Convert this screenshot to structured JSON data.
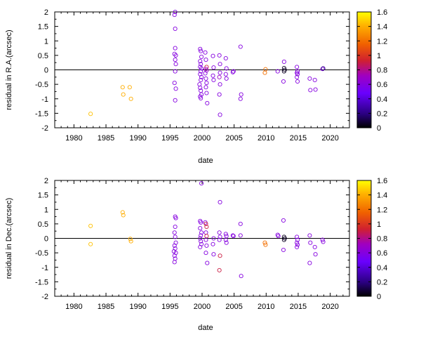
{
  "chart_data": [
    {
      "type": "scatter",
      "xlabel": "date",
      "ylabel": "residual in R.A.(arcsec)",
      "xlim": [
        1977,
        2023
      ],
      "ylim": [
        -2,
        2
      ],
      "xticks": [
        "1980",
        "1985",
        "1990",
        "1995",
        "2000",
        "2005",
        "2010",
        "2015",
        "2020"
      ],
      "yticks": [
        "-2",
        "-1.5",
        "-1",
        "-0.5",
        "0",
        "0.5",
        "1",
        "1.5",
        "2"
      ],
      "zero_line": true,
      "grid": false,
      "marker": "open-circle",
      "colorbar": {
        "range": [
          0,
          1.6
        ],
        "ticks": [
          "0",
          "0.2",
          "0.4",
          "0.6",
          "0.8",
          "1",
          "1.2",
          "1.4",
          "1.6"
        ],
        "palette": "gnuplot"
      },
      "points": [
        {
          "x": 1982.6,
          "y": -1.52,
          "c": 1.45
        },
        {
          "x": 1987.6,
          "y": -0.6,
          "c": 1.4
        },
        {
          "x": 1987.7,
          "y": -0.85,
          "c": 1.4
        },
        {
          "x": 1988.7,
          "y": -0.6,
          "c": 1.4
        },
        {
          "x": 1988.9,
          "y": -1.0,
          "c": 1.4
        },
        {
          "x": 1995.7,
          "y": 1.9,
          "c": 0.6
        },
        {
          "x": 1995.8,
          "y": 2.0,
          "c": 0.6
        },
        {
          "x": 1995.8,
          "y": 1.42,
          "c": 0.6
        },
        {
          "x": 1995.8,
          "y": 0.75,
          "c": 0.6
        },
        {
          "x": 1995.7,
          "y": 0.55,
          "c": 0.6
        },
        {
          "x": 1995.9,
          "y": 0.5,
          "c": 0.6
        },
        {
          "x": 1995.8,
          "y": 0.35,
          "c": 0.6
        },
        {
          "x": 1995.9,
          "y": 0.2,
          "c": 0.6
        },
        {
          "x": 1995.8,
          "y": -0.05,
          "c": 0.6
        },
        {
          "x": 1995.7,
          "y": -0.45,
          "c": 0.6
        },
        {
          "x": 1995.9,
          "y": -0.65,
          "c": 0.6
        },
        {
          "x": 1995.8,
          "y": -1.05,
          "c": 0.6
        },
        {
          "x": 1999.7,
          "y": 0.72,
          "c": 0.6
        },
        {
          "x": 1999.8,
          "y": 0.65,
          "c": 0.6
        },
        {
          "x": 1999.9,
          "y": 0.45,
          "c": 0.6
        },
        {
          "x": 1999.7,
          "y": 0.3,
          "c": 0.6
        },
        {
          "x": 1999.8,
          "y": 0.2,
          "c": 0.6
        },
        {
          "x": 1999.7,
          "y": 0.1,
          "c": 0.6
        },
        {
          "x": 1999.9,
          "y": 0.05,
          "c": 0.6
        },
        {
          "x": 1999.8,
          "y": -0.05,
          "c": 0.6
        },
        {
          "x": 1999.7,
          "y": -0.15,
          "c": 0.6
        },
        {
          "x": 1999.9,
          "y": -0.25,
          "c": 0.6
        },
        {
          "x": 1999.8,
          "y": -0.35,
          "c": 0.6
        },
        {
          "x": 1999.6,
          "y": -0.5,
          "c": 0.6
        },
        {
          "x": 1999.7,
          "y": -0.62,
          "c": 0.6
        },
        {
          "x": 1999.8,
          "y": -0.72,
          "c": 0.6
        },
        {
          "x": 1999.9,
          "y": -0.85,
          "c": 0.6
        },
        {
          "x": 1999.7,
          "y": -0.92,
          "c": 0.6
        },
        {
          "x": 1999.8,
          "y": -0.98,
          "c": 0.6
        },
        {
          "x": 2000.5,
          "y": 0.6,
          "c": 0.6
        },
        {
          "x": 2000.6,
          "y": 0.35,
          "c": 0.6
        },
        {
          "x": 2000.7,
          "y": 0.1,
          "c": 0.9
        },
        {
          "x": 2000.6,
          "y": 0.03,
          "c": 0.7
        },
        {
          "x": 2000.7,
          "y": -0.02,
          "c": 0.7
        },
        {
          "x": 2000.5,
          "y": -0.12,
          "c": 0.6
        },
        {
          "x": 2000.6,
          "y": -0.3,
          "c": 0.6
        },
        {
          "x": 2000.7,
          "y": -0.45,
          "c": 0.6
        },
        {
          "x": 2000.6,
          "y": -0.6,
          "c": 0.6
        },
        {
          "x": 2000.7,
          "y": -0.8,
          "c": 0.6
        },
        {
          "x": 2000.8,
          "y": -1.15,
          "c": 0.6
        },
        {
          "x": 2001.7,
          "y": 0.48,
          "c": 0.6
        },
        {
          "x": 2001.8,
          "y": 0.08,
          "c": 0.6
        },
        {
          "x": 2001.7,
          "y": -0.2,
          "c": 0.6
        },
        {
          "x": 2001.8,
          "y": -0.35,
          "c": 0.6
        },
        {
          "x": 2002.7,
          "y": 0.5,
          "c": 0.6
        },
        {
          "x": 2002.8,
          "y": 0.2,
          "c": 0.6
        },
        {
          "x": 2002.8,
          "y": -0.1,
          "c": 0.6
        },
        {
          "x": 2002.7,
          "y": -0.25,
          "c": 0.7
        },
        {
          "x": 2002.8,
          "y": -0.5,
          "c": 0.6
        },
        {
          "x": 2002.7,
          "y": -0.85,
          "c": 0.6
        },
        {
          "x": 2002.8,
          "y": -1.55,
          "c": 0.6
        },
        {
          "x": 2003.7,
          "y": 0.4,
          "c": 0.6
        },
        {
          "x": 2003.8,
          "y": 0.05,
          "c": 0.6
        },
        {
          "x": 2003.7,
          "y": -0.15,
          "c": 0.6
        },
        {
          "x": 2003.8,
          "y": -0.3,
          "c": 0.6
        },
        {
          "x": 2004.8,
          "y": -0.08,
          "c": 0.6
        },
        {
          "x": 2004.9,
          "y": -0.05,
          "c": 0.6
        },
        {
          "x": 2006.0,
          "y": 0.8,
          "c": 0.6
        },
        {
          "x": 2006.1,
          "y": -0.85,
          "c": 0.6
        },
        {
          "x": 2006.0,
          "y": -1.0,
          "c": 0.6
        },
        {
          "x": 2009.9,
          "y": 0.02,
          "c": 1.2
        },
        {
          "x": 2009.8,
          "y": -0.1,
          "c": 1.2
        },
        {
          "x": 2011.8,
          "y": -0.05,
          "c": 0.6
        },
        {
          "x": 2012.8,
          "y": 0.28,
          "c": 0.6
        },
        {
          "x": 2012.8,
          "y": 0.06,
          "c": 0.05
        },
        {
          "x": 2012.9,
          "y": 0.0,
          "c": 0.05
        },
        {
          "x": 2012.8,
          "y": -0.05,
          "c": 0.05
        },
        {
          "x": 2012.7,
          "y": -0.4,
          "c": 0.6
        },
        {
          "x": 2014.8,
          "y": 0.1,
          "c": 0.6
        },
        {
          "x": 2014.9,
          "y": -0.05,
          "c": 0.6
        },
        {
          "x": 2014.8,
          "y": -0.1,
          "c": 0.6
        },
        {
          "x": 2014.9,
          "y": -0.15,
          "c": 0.6
        },
        {
          "x": 2014.8,
          "y": -0.25,
          "c": 0.6
        },
        {
          "x": 2014.9,
          "y": -0.4,
          "c": 0.6
        },
        {
          "x": 2016.8,
          "y": -0.3,
          "c": 0.6
        },
        {
          "x": 2016.9,
          "y": -0.7,
          "c": 0.6
        },
        {
          "x": 2017.6,
          "y": -0.35,
          "c": 0.6
        },
        {
          "x": 2017.7,
          "y": -0.68,
          "c": 0.6
        },
        {
          "x": 2018.8,
          "y": 0.03,
          "c": 0.6
        },
        {
          "x": 2018.9,
          "y": 0.05,
          "c": 0.2
        }
      ]
    },
    {
      "type": "scatter",
      "xlabel": "date",
      "ylabel": "residual in Dec.(arcsec)",
      "xlim": [
        1977,
        2023
      ],
      "ylim": [
        -2,
        2
      ],
      "xticks": [
        "1980",
        "1985",
        "1990",
        "1995",
        "2000",
        "2005",
        "2010",
        "2015",
        "2020"
      ],
      "yticks": [
        "-2",
        "-1.5",
        "-1",
        "-0.5",
        "0",
        "0.5",
        "1",
        "1.5",
        "2"
      ],
      "zero_line": true,
      "grid": false,
      "marker": "open-circle",
      "colorbar": {
        "range": [
          0,
          1.6
        ],
        "ticks": [
          "0",
          "0.2",
          "0.4",
          "0.6",
          "0.8",
          "1",
          "1.2",
          "1.4",
          "1.6"
        ],
        "palette": "gnuplot"
      },
      "points": [
        {
          "x": 1982.6,
          "y": 0.43,
          "c": 1.45
        },
        {
          "x": 1982.6,
          "y": -0.2,
          "c": 1.45
        },
        {
          "x": 1987.6,
          "y": 0.9,
          "c": 1.4
        },
        {
          "x": 1987.7,
          "y": 0.8,
          "c": 1.4
        },
        {
          "x": 1988.8,
          "y": -0.02,
          "c": 1.4
        },
        {
          "x": 1988.9,
          "y": -0.1,
          "c": 1.4
        },
        {
          "x": 1995.8,
          "y": 0.75,
          "c": 0.6
        },
        {
          "x": 1995.9,
          "y": 0.7,
          "c": 0.6
        },
        {
          "x": 1995.8,
          "y": 0.4,
          "c": 0.6
        },
        {
          "x": 1995.7,
          "y": 0.2,
          "c": 0.6
        },
        {
          "x": 1995.8,
          "y": 0.05,
          "c": 0.6
        },
        {
          "x": 1995.9,
          "y": -0.15,
          "c": 0.6
        },
        {
          "x": 1995.7,
          "y": -0.25,
          "c": 0.6
        },
        {
          "x": 1995.8,
          "y": -0.35,
          "c": 0.6
        },
        {
          "x": 1995.6,
          "y": -0.45,
          "c": 0.6
        },
        {
          "x": 1995.9,
          "y": -0.5,
          "c": 0.6
        },
        {
          "x": 1995.7,
          "y": -0.6,
          "c": 0.6
        },
        {
          "x": 1995.8,
          "y": -0.7,
          "c": 0.6
        },
        {
          "x": 1995.7,
          "y": -0.82,
          "c": 0.6
        },
        {
          "x": 1999.9,
          "y": 1.9,
          "c": 0.6
        },
        {
          "x": 1999.7,
          "y": 0.6,
          "c": 0.6
        },
        {
          "x": 1999.8,
          "y": 0.55,
          "c": 0.6
        },
        {
          "x": 1999.7,
          "y": 0.35,
          "c": 0.6
        },
        {
          "x": 1999.9,
          "y": 0.2,
          "c": 0.6
        },
        {
          "x": 1999.8,
          "y": 0.1,
          "c": 0.6
        },
        {
          "x": 1999.7,
          "y": 0.0,
          "c": 0.6
        },
        {
          "x": 1999.8,
          "y": -0.1,
          "c": 0.6
        },
        {
          "x": 1999.9,
          "y": -0.2,
          "c": 0.6
        },
        {
          "x": 1999.7,
          "y": -0.3,
          "c": 0.6
        },
        {
          "x": 2000.5,
          "y": 0.55,
          "c": 0.6
        },
        {
          "x": 2000.6,
          "y": 0.5,
          "c": 0.9
        },
        {
          "x": 2000.7,
          "y": 0.4,
          "c": 0.9
        },
        {
          "x": 2000.6,
          "y": 0.2,
          "c": 0.6
        },
        {
          "x": 2000.7,
          "y": 0.08,
          "c": 0.9
        },
        {
          "x": 2000.6,
          "y": -0.05,
          "c": 0.6
        },
        {
          "x": 2000.7,
          "y": -0.25,
          "c": 0.6
        },
        {
          "x": 2000.6,
          "y": -0.5,
          "c": 0.6
        },
        {
          "x": 2000.8,
          "y": -0.85,
          "c": 0.6
        },
        {
          "x": 2001.8,
          "y": 0.0,
          "c": 0.6
        },
        {
          "x": 2001.7,
          "y": -0.2,
          "c": 0.6
        },
        {
          "x": 2001.8,
          "y": -0.55,
          "c": 0.6
        },
        {
          "x": 2002.8,
          "y": 1.25,
          "c": 0.6
        },
        {
          "x": 2002.7,
          "y": 0.2,
          "c": 0.6
        },
        {
          "x": 2002.8,
          "y": 0.05,
          "c": 0.6
        },
        {
          "x": 2002.7,
          "y": -0.05,
          "c": 0.6
        },
        {
          "x": 2002.8,
          "y": -0.6,
          "c": 0.9
        },
        {
          "x": 2002.7,
          "y": -1.1,
          "c": 0.9
        },
        {
          "x": 2003.7,
          "y": 0.15,
          "c": 0.6
        },
        {
          "x": 2003.8,
          "y": 0.08,
          "c": 0.6
        },
        {
          "x": 2003.7,
          "y": -0.05,
          "c": 0.6
        },
        {
          "x": 2003.8,
          "y": -0.15,
          "c": 0.6
        },
        {
          "x": 2004.8,
          "y": 0.1,
          "c": 0.6
        },
        {
          "x": 2004.9,
          "y": 0.08,
          "c": 0.6
        },
        {
          "x": 2006.0,
          "y": 0.5,
          "c": 0.6
        },
        {
          "x": 2006.0,
          "y": 0.1,
          "c": 0.6
        },
        {
          "x": 2006.1,
          "y": -1.3,
          "c": 0.6
        },
        {
          "x": 2009.8,
          "y": -0.15,
          "c": 1.2
        },
        {
          "x": 2009.9,
          "y": -0.22,
          "c": 1.2
        },
        {
          "x": 2011.8,
          "y": 0.12,
          "c": 0.6
        },
        {
          "x": 2011.9,
          "y": 0.08,
          "c": 0.6
        },
        {
          "x": 2012.7,
          "y": 0.62,
          "c": 0.6
        },
        {
          "x": 2012.8,
          "y": 0.05,
          "c": 0.05
        },
        {
          "x": 2012.9,
          "y": 0.0,
          "c": 0.05
        },
        {
          "x": 2012.8,
          "y": -0.05,
          "c": 0.05
        },
        {
          "x": 2012.7,
          "y": -0.4,
          "c": 0.6
        },
        {
          "x": 2014.8,
          "y": 0.05,
          "c": 0.6
        },
        {
          "x": 2014.9,
          "y": -0.05,
          "c": 0.6
        },
        {
          "x": 2014.8,
          "y": -0.15,
          "c": 0.6
        },
        {
          "x": 2014.9,
          "y": -0.22,
          "c": 0.6
        },
        {
          "x": 2014.8,
          "y": -0.3,
          "c": 0.6
        },
        {
          "x": 2016.8,
          "y": 0.1,
          "c": 0.6
        },
        {
          "x": 2016.9,
          "y": -0.15,
          "c": 0.6
        },
        {
          "x": 2016.8,
          "y": -0.85,
          "c": 0.6
        },
        {
          "x": 2017.6,
          "y": -0.3,
          "c": 0.6
        },
        {
          "x": 2017.7,
          "y": -0.55,
          "c": 0.6
        },
        {
          "x": 2018.8,
          "y": -0.05,
          "c": 0.6
        },
        {
          "x": 2018.9,
          "y": -0.12,
          "c": 0.6
        }
      ]
    }
  ]
}
